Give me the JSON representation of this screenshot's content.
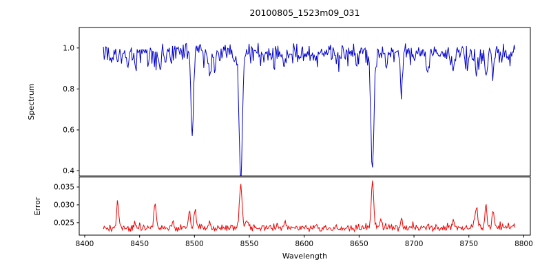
{
  "chart_data": [
    {
      "type": "line",
      "series_name": "spectrum",
      "title": "20100805_1523m09_031",
      "ylabel": "Spectrum",
      "line_color": "#0000cd",
      "xlim": [
        8395,
        8806
      ],
      "ylim": [
        0.375,
        1.1
      ],
      "yticks": [
        {
          "value": 1.0,
          "label": "1.0"
        },
        {
          "value": 0.8,
          "label": "0.8"
        },
        {
          "value": 0.6,
          "label": "0.6"
        },
        {
          "value": 0.4,
          "label": "0.4"
        }
      ],
      "x_start": 8417.0,
      "x_end": 8792.0,
      "x_step": 0.75,
      "continuum": 0.98,
      "clip_max": 1.055,
      "noise_amplitude": 0.05,
      "spike_probability": 0.28,
      "spike_depth": 0.1,
      "absorption_lines": [
        {
          "center": 8424.0,
          "depth": 0.06,
          "sigma": 0.9
        },
        {
          "center": 8439.0,
          "depth": 0.09,
          "sigma": 0.9
        },
        {
          "center": 8446.5,
          "depth": 0.07,
          "sigma": 0.8
        },
        {
          "center": 8468.0,
          "depth": 0.07,
          "sigma": 0.9
        },
        {
          "center": 8498.0,
          "depth": 0.44,
          "sigma": 1.1
        },
        {
          "center": 8514.0,
          "depth": 0.12,
          "sigma": 1.0
        },
        {
          "center": 8518.5,
          "depth": 0.09,
          "sigma": 0.8
        },
        {
          "center": 8542.1,
          "depth": 0.585,
          "sigma": 1.5
        },
        {
          "center": 8582.0,
          "depth": 0.07,
          "sigma": 0.9
        },
        {
          "center": 8611.0,
          "depth": 0.06,
          "sigma": 0.9
        },
        {
          "center": 8648.0,
          "depth": 0.07,
          "sigma": 0.9
        },
        {
          "center": 8662.1,
          "depth": 0.565,
          "sigma": 1.4
        },
        {
          "center": 8674.8,
          "depth": 0.08,
          "sigma": 0.9
        },
        {
          "center": 8688.6,
          "depth": 0.2,
          "sigma": 1.0
        },
        {
          "center": 8713.0,
          "depth": 0.08,
          "sigma": 0.9
        },
        {
          "center": 8736.0,
          "depth": 0.09,
          "sigma": 0.9
        },
        {
          "center": 8757.0,
          "depth": 0.12,
          "sigma": 0.9
        },
        {
          "center": 8765.5,
          "depth": 0.13,
          "sigma": 0.9
        },
        {
          "center": 8772.0,
          "depth": 0.11,
          "sigma": 0.8
        }
      ]
    },
    {
      "type": "line",
      "series_name": "error",
      "ylabel": "Error",
      "xlabel": "Wavelength",
      "line_color": "#ee0000",
      "ylim": [
        0.0215,
        0.0378
      ],
      "yticks": [
        {
          "value": 0.035,
          "label": "0.035"
        },
        {
          "value": 0.03,
          "label": "0.030"
        },
        {
          "value": 0.025,
          "label": "0.025"
        }
      ],
      "xticks": [
        {
          "value": 8400,
          "label": "8400"
        },
        {
          "value": 8450,
          "label": "8450"
        },
        {
          "value": 8500,
          "label": "8500"
        },
        {
          "value": 8550,
          "label": "8550"
        },
        {
          "value": 8600,
          "label": "8600"
        },
        {
          "value": 8650,
          "label": "8650"
        },
        {
          "value": 8700,
          "label": "8700"
        },
        {
          "value": 8750,
          "label": "8750"
        },
        {
          "value": 8800,
          "label": "8800"
        }
      ],
      "baseline": 0.0235,
      "noise_amplitude": 0.0011,
      "spike_probability": 0.12,
      "spike_height": 0.0016,
      "peaks": [
        {
          "center": 8430.0,
          "amp": 0.0075,
          "sigma": 0.9
        },
        {
          "center": 8446.0,
          "amp": 0.0018,
          "sigma": 0.9
        },
        {
          "center": 8464.0,
          "amp": 0.0078,
          "sigma": 0.9
        },
        {
          "center": 8480.0,
          "amp": 0.0015,
          "sigma": 0.9
        },
        {
          "center": 8495.5,
          "amp": 0.0045,
          "sigma": 1.0
        },
        {
          "center": 8500.5,
          "amp": 0.005,
          "sigma": 1.0
        },
        {
          "center": 8514.0,
          "amp": 0.0018,
          "sigma": 0.9
        },
        {
          "center": 8542.1,
          "amp": 0.0125,
          "sigma": 1.2
        },
        {
          "center": 8548.0,
          "amp": 0.002,
          "sigma": 1.0
        },
        {
          "center": 8582.0,
          "amp": 0.0012,
          "sigma": 0.9
        },
        {
          "center": 8611.0,
          "amp": 0.001,
          "sigma": 0.9
        },
        {
          "center": 8662.1,
          "amp": 0.0135,
          "sigma": 1.1
        },
        {
          "center": 8670.0,
          "amp": 0.0022,
          "sigma": 0.9
        },
        {
          "center": 8688.6,
          "amp": 0.0028,
          "sigma": 0.9
        },
        {
          "center": 8713.0,
          "amp": 0.0012,
          "sigma": 0.9
        },
        {
          "center": 8736.0,
          "amp": 0.0015,
          "sigma": 0.9
        },
        {
          "center": 8757.0,
          "amp": 0.0058,
          "sigma": 1.0
        },
        {
          "center": 8765.5,
          "amp": 0.0068,
          "sigma": 0.9
        },
        {
          "center": 8772.0,
          "amp": 0.0048,
          "sigma": 0.8
        }
      ]
    }
  ]
}
